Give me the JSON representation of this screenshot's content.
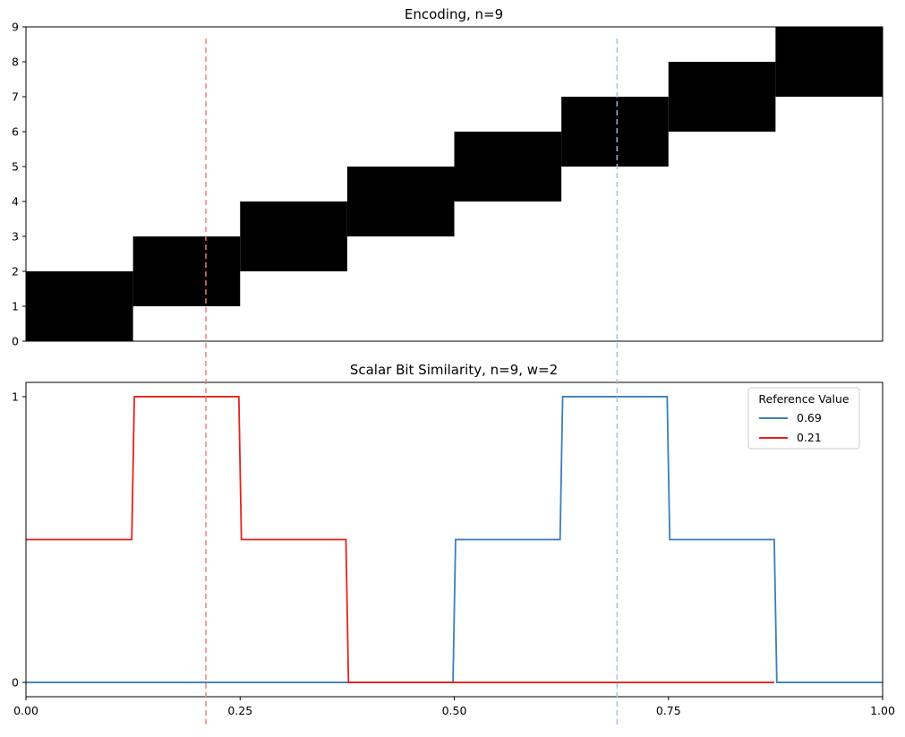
{
  "chart_data": [
    {
      "type": "heatmap",
      "title": "Encoding, n=9",
      "xlim": [
        0,
        1
      ],
      "ylim": [
        0,
        9
      ],
      "y_ticks": [
        "0",
        "1",
        "2",
        "3",
        "4",
        "5",
        "6",
        "7",
        "8",
        "9"
      ],
      "x_ticks_shown": false,
      "n": 9,
      "w": 2,
      "buckets": 8,
      "active_bits": [
        {
          "x_range": [
            0.0,
            0.125
          ],
          "bits": [
            0,
            1
          ]
        },
        {
          "x_range": [
            0.125,
            0.25
          ],
          "bits": [
            1,
            2
          ]
        },
        {
          "x_range": [
            0.25,
            0.375
          ],
          "bits": [
            2,
            3
          ]
        },
        {
          "x_range": [
            0.375,
            0.5
          ],
          "bits": [
            3,
            4
          ]
        },
        {
          "x_range": [
            0.5,
            0.625
          ],
          "bits": [
            4,
            5
          ]
        },
        {
          "x_range": [
            0.625,
            0.75
          ],
          "bits": [
            5,
            6
          ]
        },
        {
          "x_range": [
            0.75,
            0.875
          ],
          "bits": [
            6,
            7
          ]
        },
        {
          "x_range": [
            0.875,
            1.0
          ],
          "bits": [
            7,
            8
          ]
        }
      ],
      "fill_color": "#000000"
    },
    {
      "type": "line",
      "title": "Scalar Bit Similarity, n=9, w=2",
      "xlim": [
        0,
        1
      ],
      "ylim": [
        -0.05,
        1.05
      ],
      "x_ticks": [
        "0.00",
        "0.25",
        "0.50",
        "0.75",
        "1.00"
      ],
      "y_ticks": [
        "0",
        "1"
      ],
      "legend": {
        "title": "Reference Value",
        "placement": "top-right"
      },
      "series": [
        {
          "name": "0.69",
          "color": "#3a7fbd",
          "x": [
            0.0,
            0.4985,
            0.5015,
            0.6235,
            0.6265,
            0.7485,
            0.7515,
            0.8735,
            0.8765,
            1.0
          ],
          "y": [
            0,
            0,
            0.5,
            0.5,
            1,
            1,
            0.5,
            0.5,
            0,
            0
          ]
        },
        {
          "name": "0.21",
          "color": "#e2231a",
          "x": [
            0.0,
            0.1235,
            0.1265,
            0.2485,
            0.2515,
            0.3735,
            0.3765,
            0.8735
          ],
          "y": [
            0.5,
            0.5,
            1,
            1,
            0.5,
            0.5,
            0,
            0
          ]
        }
      ]
    }
  ],
  "reference_lines": [
    {
      "value": 0.21,
      "color": "#f08070"
    },
    {
      "value": 0.69,
      "color": "#9cc0ee"
    }
  ]
}
